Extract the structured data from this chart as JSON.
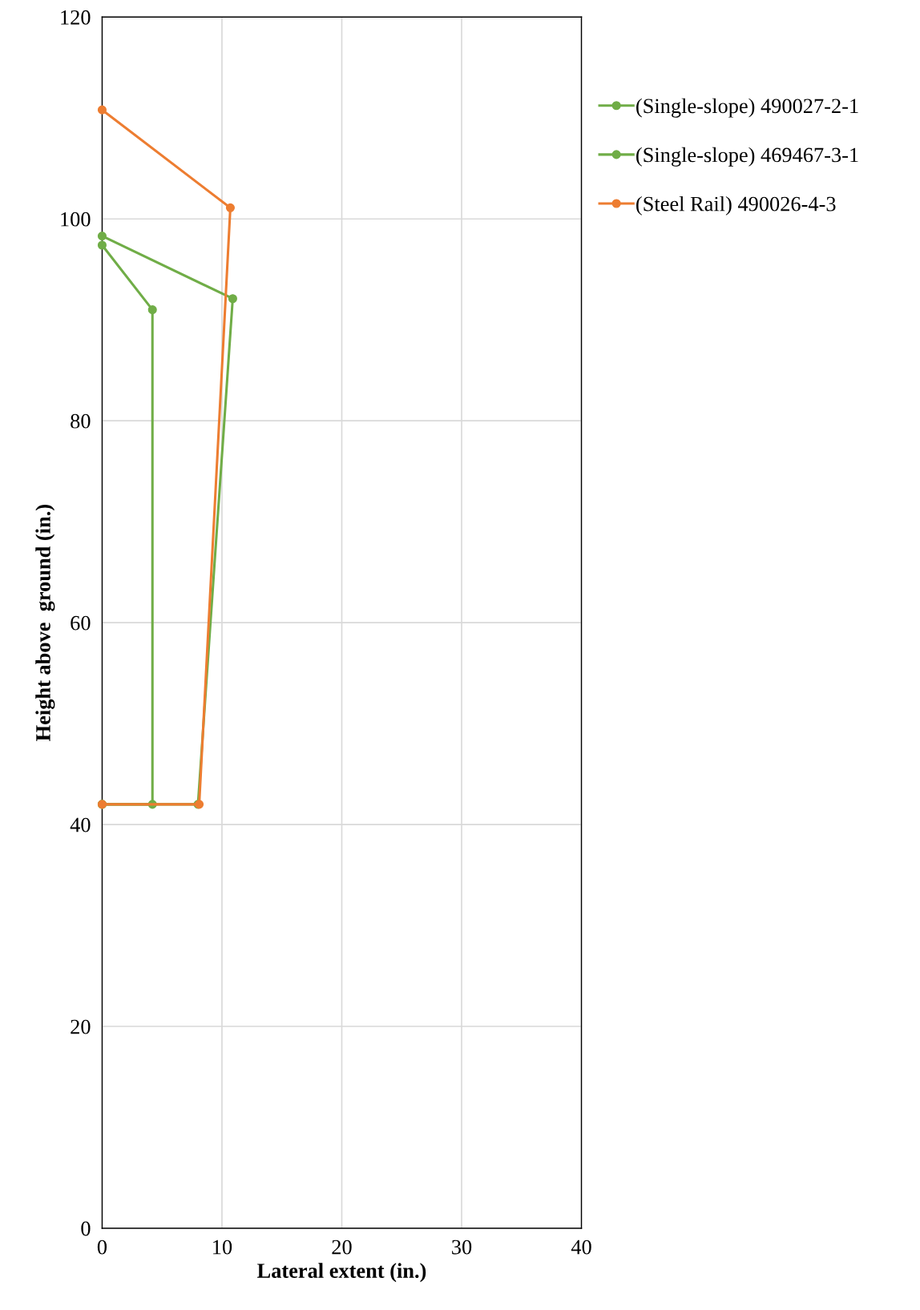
{
  "chart_data": {
    "type": "line",
    "xlabel": "Lateral extent (in.)",
    "ylabel": "Height above  ground (in.)",
    "xlim": [
      0,
      40
    ],
    "xticks": [
      0,
      10,
      20,
      30,
      40
    ],
    "ylim": [
      0,
      120
    ],
    "yticks": [
      0,
      20,
      40,
      60,
      80,
      100,
      120
    ],
    "grid": true,
    "legend": "right",
    "marker": "circle",
    "line_style": "solid",
    "series": [
      {
        "name": "(Single-slope) 490027-2-1",
        "color": "#70ad47",
        "x": [
          0,
          4.2,
          4.2,
          0
        ],
        "values": [
          42,
          42,
          91,
          97.4
        ]
      },
      {
        "name": "(Single-slope) 469467-3-1",
        "color": "#70ad47",
        "x": [
          0,
          8.0,
          10.9,
          0
        ],
        "values": [
          42,
          42,
          92.1,
          98.3
        ]
      },
      {
        "name": "(Steel Rail) 490026-4-3",
        "color": "#ed7d31",
        "x": [
          0,
          8.1,
          10.7,
          0
        ],
        "values": [
          42,
          42,
          101.1,
          110.8
        ]
      }
    ]
  }
}
